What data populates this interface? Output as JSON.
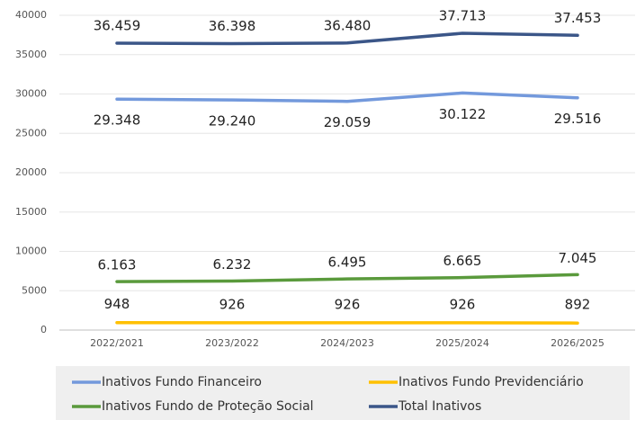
{
  "chart_data": {
    "type": "line",
    "categories": [
      "2022/2021",
      "2023/2022",
      "2024/2023",
      "2025/2024",
      "2026/2025"
    ],
    "series": [
      {
        "name": "Inativos Fundo Financeiro",
        "color": "#7399dc",
        "values": [
          29348,
          29240,
          29059,
          30122,
          29516
        ],
        "value_labels": [
          "29.348",
          "29.240",
          "29.059",
          "30.122",
          "29.516"
        ]
      },
      {
        "name": "Inativos Fundo Previdenciário",
        "color": "#ffc000",
        "values": [
          948,
          926,
          926,
          926,
          892
        ]
      },
      {
        "name": "Inativos Fundo de Proteção Social",
        "color": "#5a9a3c",
        "values": [
          6163,
          6232,
          6495,
          6665,
          7045
        ],
        "value_labels": [
          "6.163",
          "6.232",
          "6.495",
          "6.665",
          "7.045"
        ]
      },
      {
        "name": "Total Inativos",
        "color": "#3b5688",
        "values": [
          36459,
          36398,
          36480,
          37713,
          37453
        ],
        "value_labels": [
          "36.459",
          "36.398",
          "36.480",
          "37.713",
          "37.453"
        ]
      }
    ],
    "ylim": [
      0,
      40000
    ],
    "yticks": [
      0,
      5000,
      10000,
      15000,
      20000,
      25000,
      30000,
      35000,
      40000
    ],
    "grid": true,
    "legend": "bottom"
  }
}
